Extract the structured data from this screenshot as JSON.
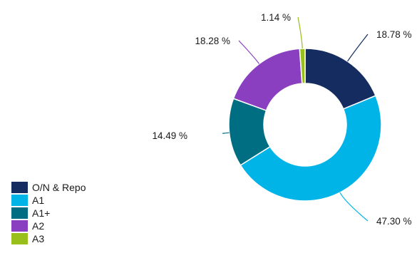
{
  "chart_data": {
    "type": "pie",
    "variant": "donut",
    "series": [
      {
        "name": "O/N & Repo",
        "value": 18.78,
        "label": "18.78 %",
        "color": "#142c5f"
      },
      {
        "name": "A1",
        "value": 47.3,
        "label": "47.30 %",
        "color": "#00b4e8"
      },
      {
        "name": "A1+",
        "value": 14.49,
        "label": "14.49 %",
        "color": "#006e82"
      },
      {
        "name": "A2",
        "value": 18.28,
        "label": "18.28 %",
        "color": "#8a3fc0"
      },
      {
        "name": "A3",
        "value": 1.14,
        "label": "1.14 %",
        "color": "#99bf1c"
      }
    ],
    "legend_position": "bottom-left",
    "start_angle": "top, clockwise"
  }
}
